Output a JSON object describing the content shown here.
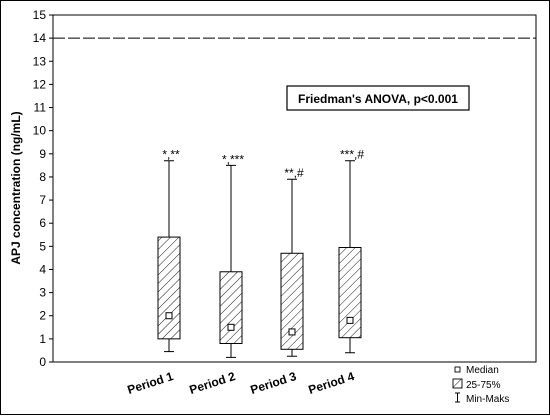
{
  "chart_data": {
    "type": "box",
    "title": "",
    "xlabel": "",
    "ylabel": "APJ concentration (ng/mL)",
    "ylim": [
      0,
      15
    ],
    "yticks": [
      0,
      1,
      2,
      3,
      4,
      5,
      6,
      7,
      8,
      9,
      10,
      11,
      12,
      13,
      14,
      15
    ],
    "grid": false,
    "categories": [
      "Period 1",
      "Period 2",
      "Period 3",
      "Period 4"
    ],
    "boxes": [
      {
        "category": "Period 1",
        "min": 0.45,
        "q1": 1.0,
        "median": 2.0,
        "q3": 5.4,
        "max": 8.7,
        "annotation": "*,**"
      },
      {
        "category": "Period 2",
        "min": 0.2,
        "q1": 0.8,
        "median": 1.5,
        "q3": 3.9,
        "max": 8.5,
        "annotation": "*,***"
      },
      {
        "category": "Period 3",
        "min": 0.25,
        "q1": 0.55,
        "median": 1.3,
        "q3": 4.7,
        "max": 7.9,
        "annotation": "**,#"
      },
      {
        "category": "Period 4",
        "min": 0.4,
        "q1": 1.05,
        "median": 1.8,
        "q3": 4.95,
        "max": 8.7,
        "annotation": "***,#"
      }
    ],
    "reference_line": {
      "y": 14,
      "style": "dashed"
    },
    "test_label": "Friedman's ANOVA, p<0.001",
    "legend": {
      "position": "bottom-right",
      "items": [
        {
          "label": "Median",
          "symbol": "square"
        },
        {
          "label": "25-75%",
          "symbol": "hatched-box"
        },
        {
          "label": "Min-Maks",
          "symbol": "whisker"
        }
      ]
    }
  }
}
